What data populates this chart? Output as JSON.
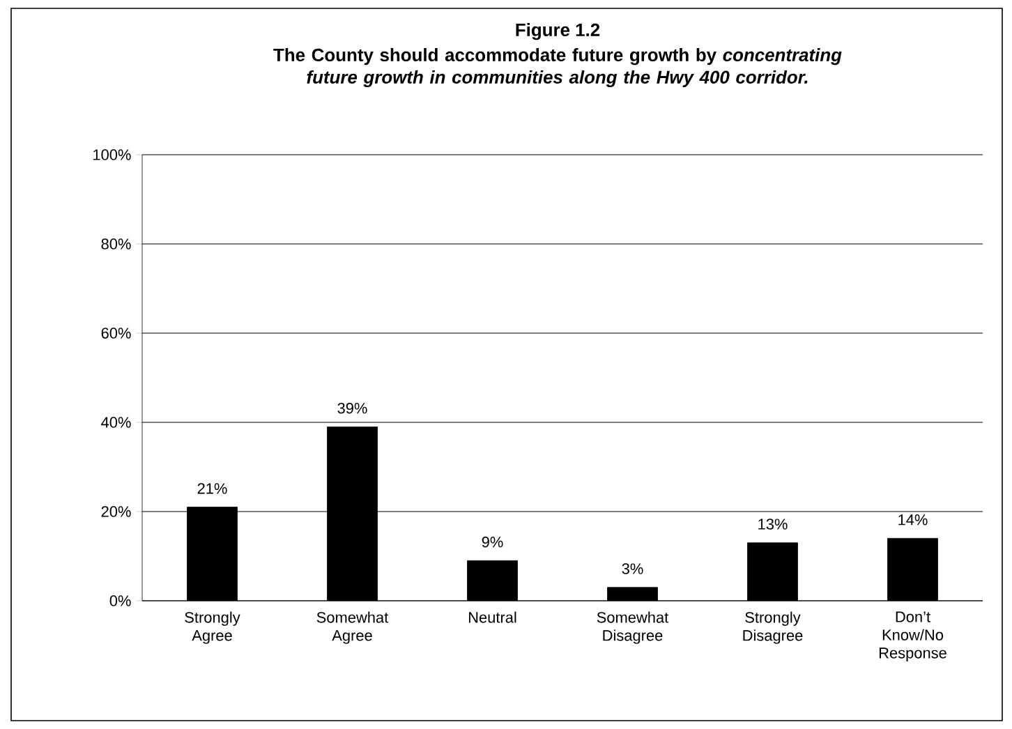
{
  "chart_data": {
    "type": "bar",
    "title": "Figure 1.2",
    "subtitle": "The County should accommodate future growth by *concentrating future growth in communities along the Hwy 400 corridor.*",
    "categories": [
      "Strongly Agree",
      "Somewhat Agree",
      "Neutral",
      "Somewhat Disagree",
      "Strongly Disagree",
      "Don’t Know/No Response"
    ],
    "values": [
      21,
      39,
      9,
      3,
      13,
      14
    ],
    "value_labels": [
      "21%",
      "39%",
      "9%",
      "3%",
      "13%",
      "14%"
    ],
    "color": "#000000",
    "ylim": [
      0,
      100
    ],
    "yticks": [
      {
        "value": 0,
        "label": "0%"
      },
      {
        "value": 20,
        "label": "20%"
      },
      {
        "value": 40,
        "label": "40%"
      },
      {
        "value": 60,
        "label": "60%"
      },
      {
        "value": 80,
        "label": "80%"
      },
      {
        "value": 100,
        "label": "100%"
      }
    ],
    "grid": "y"
  }
}
